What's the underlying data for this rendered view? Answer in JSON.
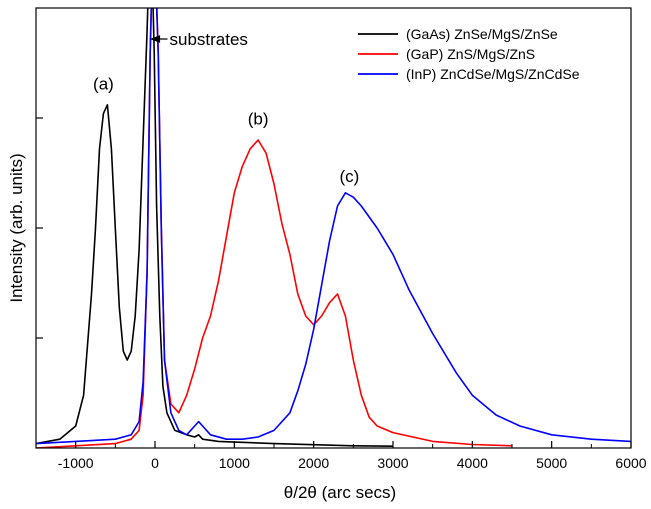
{
  "chart_data": {
    "type": "line",
    "xlabel": "θ/2θ (arc secs)",
    "ylabel": "Intensity (arb. units)",
    "xlim": [
      -1500,
      6000
    ],
    "ylim": [
      0,
      1.0
    ],
    "x_ticks": [
      -1000,
      0,
      1000,
      2000,
      3000,
      4000,
      5000,
      6000
    ],
    "x_tick_labels": [
      "-1000",
      "0",
      "1000",
      "2000",
      "3000",
      "4000",
      "5000",
      "6000"
    ],
    "y_ticks_unlabeled": [
      0.25,
      0.5,
      0.75
    ],
    "legend_position": "top-right",
    "series": [
      {
        "name": "(GaAs) ZnSe/MgS/ZnSe",
        "color": "#000000",
        "points": [
          [
            -1500,
            0.01
          ],
          [
            -1200,
            0.02
          ],
          [
            -1000,
            0.05
          ],
          [
            -900,
            0.12
          ],
          [
            -800,
            0.35
          ],
          [
            -750,
            0.5
          ],
          [
            -700,
            0.68
          ],
          [
            -650,
            0.76
          ],
          [
            -600,
            0.78
          ],
          [
            -550,
            0.68
          ],
          [
            -500,
            0.5
          ],
          [
            -450,
            0.32
          ],
          [
            -400,
            0.22
          ],
          [
            -350,
            0.2
          ],
          [
            -300,
            0.22
          ],
          [
            -250,
            0.3
          ],
          [
            -200,
            0.45
          ],
          [
            -150,
            0.7
          ],
          [
            -100,
            0.95
          ],
          [
            -70,
            1.12
          ],
          [
            -40,
            1.12
          ],
          [
            -10,
            0.9
          ],
          [
            20,
            0.55
          ],
          [
            60,
            0.3
          ],
          [
            100,
            0.14
          ],
          [
            150,
            0.08
          ],
          [
            250,
            0.04
          ],
          [
            400,
            0.03
          ],
          [
            500,
            0.025
          ],
          [
            550,
            0.03
          ],
          [
            600,
            0.02
          ],
          [
            800,
            0.015
          ],
          [
            1500,
            0.01
          ],
          [
            2500,
            0.005
          ],
          [
            3000,
            0.004
          ]
        ]
      },
      {
        "name": "(GaP) ZnS/MgS/ZnS",
        "color": "#ff0000",
        "points": [
          [
            -1500,
            0.0
          ],
          [
            -1000,
            0.005
          ],
          [
            -500,
            0.01
          ],
          [
            -300,
            0.02
          ],
          [
            -200,
            0.04
          ],
          [
            -150,
            0.12
          ],
          [
            -100,
            0.4
          ],
          [
            -60,
            0.9
          ],
          [
            -30,
            1.12
          ],
          [
            0,
            1.12
          ],
          [
            40,
            0.9
          ],
          [
            80,
            0.5
          ],
          [
            120,
            0.2
          ],
          [
            200,
            0.1
          ],
          [
            300,
            0.08
          ],
          [
            400,
            0.12
          ],
          [
            500,
            0.18
          ],
          [
            600,
            0.25
          ],
          [
            700,
            0.3
          ],
          [
            800,
            0.38
          ],
          [
            900,
            0.48
          ],
          [
            1000,
            0.58
          ],
          [
            1100,
            0.64
          ],
          [
            1200,
            0.68
          ],
          [
            1300,
            0.7
          ],
          [
            1400,
            0.67
          ],
          [
            1500,
            0.6
          ],
          [
            1600,
            0.51
          ],
          [
            1700,
            0.44
          ],
          [
            1800,
            0.35
          ],
          [
            1900,
            0.3
          ],
          [
            2000,
            0.28
          ],
          [
            2100,
            0.3
          ],
          [
            2200,
            0.33
          ],
          [
            2300,
            0.35
          ],
          [
            2400,
            0.3
          ],
          [
            2500,
            0.2
          ],
          [
            2600,
            0.12
          ],
          [
            2700,
            0.07
          ],
          [
            2800,
            0.05
          ],
          [
            3000,
            0.035
          ],
          [
            3500,
            0.015
          ],
          [
            4000,
            0.008
          ],
          [
            4500,
            0.005
          ]
        ]
      },
      {
        "name": "(InP) ZnCdSe/MgS/ZnCdSe",
        "color": "#0000ff",
        "points": [
          [
            -1500,
            0.01
          ],
          [
            -1000,
            0.015
          ],
          [
            -500,
            0.02
          ],
          [
            -300,
            0.03
          ],
          [
            -200,
            0.06
          ],
          [
            -150,
            0.15
          ],
          [
            -100,
            0.4
          ],
          [
            -60,
            0.9
          ],
          [
            -30,
            1.12
          ],
          [
            0,
            1.12
          ],
          [
            40,
            0.9
          ],
          [
            80,
            0.5
          ],
          [
            120,
            0.2
          ],
          [
            200,
            0.08
          ],
          [
            300,
            0.04
          ],
          [
            400,
            0.03
          ],
          [
            500,
            0.05
          ],
          [
            550,
            0.06
          ],
          [
            600,
            0.05
          ],
          [
            700,
            0.03
          ],
          [
            900,
            0.02
          ],
          [
            1100,
            0.02
          ],
          [
            1300,
            0.025
          ],
          [
            1500,
            0.04
          ],
          [
            1700,
            0.08
          ],
          [
            1800,
            0.13
          ],
          [
            1900,
            0.19
          ],
          [
            2000,
            0.27
          ],
          [
            2100,
            0.37
          ],
          [
            2200,
            0.47
          ],
          [
            2300,
            0.55
          ],
          [
            2400,
            0.58
          ],
          [
            2500,
            0.57
          ],
          [
            2600,
            0.55
          ],
          [
            2800,
            0.5
          ],
          [
            3000,
            0.44
          ],
          [
            3200,
            0.36
          ],
          [
            3500,
            0.26
          ],
          [
            3800,
            0.17
          ],
          [
            4000,
            0.12
          ],
          [
            4300,
            0.075
          ],
          [
            4600,
            0.05
          ],
          [
            5000,
            0.03
          ],
          [
            5500,
            0.02
          ],
          [
            6000,
            0.015
          ]
        ]
      }
    ],
    "annotations": [
      {
        "text": "(a)",
        "x": -650,
        "y": 0.815
      },
      {
        "text": "(b)",
        "x": 1300,
        "y": 0.735
      },
      {
        "text": "(c)",
        "x": 2450,
        "y": 0.605
      },
      {
        "text": "substrates",
        "x": 170,
        "y": 1.0
      }
    ]
  }
}
